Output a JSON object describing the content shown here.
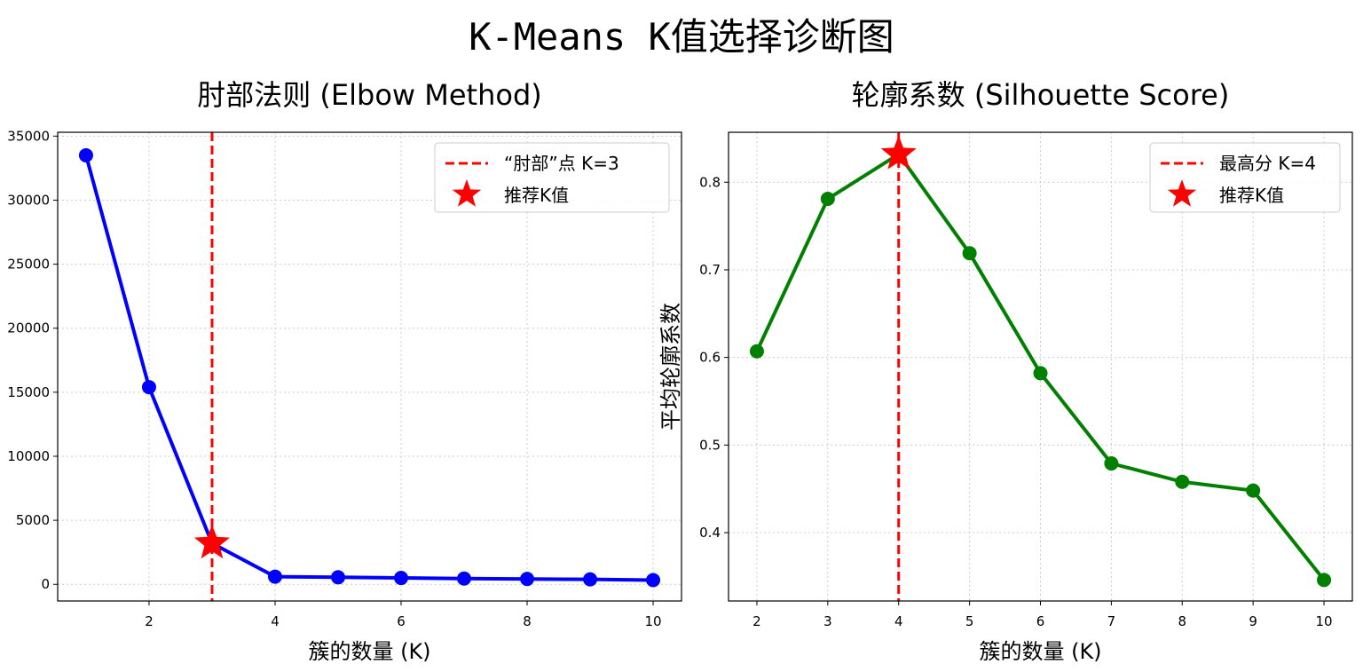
{
  "figure": {
    "suptitle": "K-Means K值选择诊断图"
  },
  "chart_data": [
    {
      "type": "line",
      "title": "肘部法则 (Elbow Method)",
      "xlabel": "簇的数量 (K)",
      "ylabel": "",
      "x": [
        1,
        2,
        3,
        4,
        5,
        6,
        7,
        8,
        9,
        10
      ],
      "series": [
        {
          "values": [
            33500,
            15400,
            3200,
            600,
            550,
            500,
            450,
            420,
            390,
            330
          ],
          "color": "#0000ff"
        }
      ],
      "xlim": [
        0.55,
        10.45
      ],
      "ylim": [
        -1300,
        35300
      ],
      "xticks": [
        2,
        4,
        6,
        8,
        10
      ],
      "yticks": [
        0,
        5000,
        10000,
        15000,
        20000,
        25000,
        30000,
        35000
      ],
      "grid": true,
      "vline": {
        "x": 3,
        "color": "#ff0000",
        "label": "“肘部”点 K=3"
      },
      "highlight": {
        "x": 3,
        "y": 3200,
        "color": "#ff0000",
        "label": "推荐K值"
      },
      "legend_position": "top-right"
    },
    {
      "type": "line",
      "title": "轮廓系数 (Silhouette Score)",
      "xlabel": "簇的数量 (K)",
      "ylabel": "平均轮廓系数",
      "x": [
        2,
        3,
        4,
        5,
        6,
        7,
        8,
        9,
        10
      ],
      "series": [
        {
          "values": [
            0.607,
            0.781,
            0.832,
            0.719,
            0.582,
            0.479,
            0.458,
            0.448,
            0.346
          ],
          "color": "#008000"
        }
      ],
      "xlim": [
        1.6,
        10.4
      ],
      "ylim": [
        0.322,
        0.857
      ],
      "xticks": [
        2,
        3,
        4,
        5,
        6,
        7,
        8,
        9,
        10
      ],
      "yticks": [
        0.4,
        0.5,
        0.6,
        0.7,
        0.8
      ],
      "grid": true,
      "vline": {
        "x": 4,
        "color": "#ff0000",
        "label": "最高分 K=4"
      },
      "highlight": {
        "x": 4,
        "y": 0.832,
        "color": "#ff0000",
        "label": "推荐K值"
      },
      "legend_position": "top-right"
    }
  ]
}
